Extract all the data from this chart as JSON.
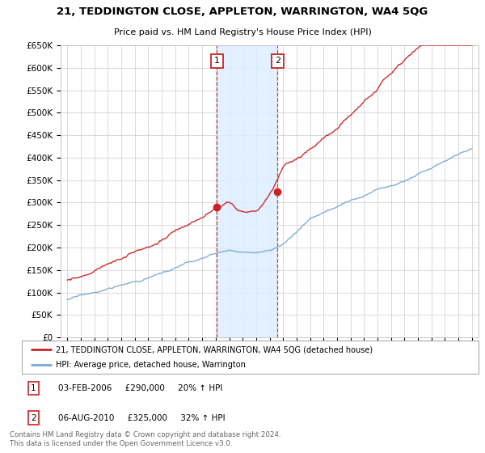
{
  "title": "21, TEDDINGTON CLOSE, APPLETON, WARRINGTON, WA4 5QG",
  "subtitle": "Price paid vs. HM Land Registry's House Price Index (HPI)",
  "ylabel_ticks": [
    "£0",
    "£50K",
    "£100K",
    "£150K",
    "£200K",
    "£250K",
    "£300K",
    "£350K",
    "£400K",
    "£450K",
    "£500K",
    "£550K",
    "£600K",
    "£650K"
  ],
  "ytick_values": [
    0,
    50000,
    100000,
    150000,
    200000,
    250000,
    300000,
    350000,
    400000,
    450000,
    500000,
    550000,
    600000,
    650000
  ],
  "xlim_start": 1994.5,
  "xlim_end": 2025.5,
  "ylim_min": 0,
  "ylim_max": 650000,
  "hpi_color": "#7aaad4",
  "price_color": "#cc2222",
  "shading_color": "#ddeeff",
  "legend_label_price": "21, TEDDINGTON CLOSE, APPLETON, WARRINGTON, WA4 5QG (detached house)",
  "legend_label_hpi": "HPI: Average price, detached house, Warrington",
  "transaction1_date": 2006.08,
  "transaction1_price": 290000,
  "transaction1_label": "1",
  "transaction1_text": "03-FEB-2006     £290,000     20% ↑ HPI",
  "transaction2_date": 2010.58,
  "transaction2_price": 325000,
  "transaction2_label": "2",
  "transaction2_text": "06-AUG-2010     £325,000     32% ↑ HPI",
  "footer_text": "Contains HM Land Registry data © Crown copyright and database right 2024.\nThis data is licensed under the Open Government Licence v3.0.",
  "background_color": "#ffffff",
  "grid_color": "#cccccc"
}
